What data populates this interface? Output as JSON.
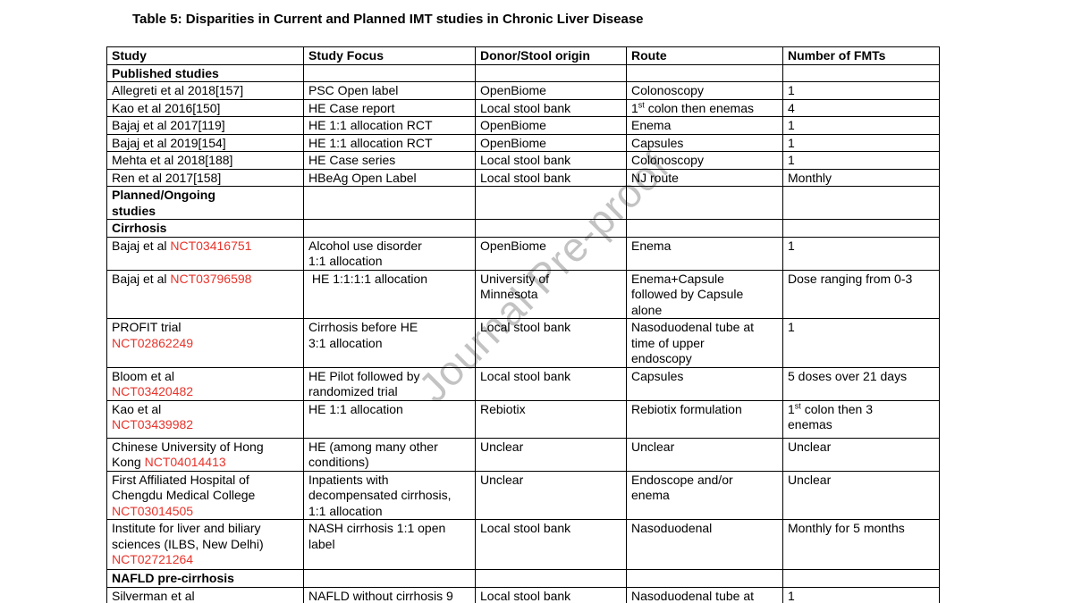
{
  "title": "Table 5: Disparities in Current and Planned IMT studies in Chronic Liver Disease",
  "watermark": {
    "text": "Journal Pre-proof"
  },
  "colors": {
    "accent_red": "#e8332a",
    "watermark_gray": "#c3c3c3",
    "border": "#000000",
    "background": "#ffffff"
  },
  "table": {
    "columns": [
      "Study",
      "Study Focus",
      "Donor/Stool origin",
      "Route",
      "Number of FMTs"
    ],
    "rows": [
      {
        "kind": "section",
        "h": 18,
        "cells": [
          [
            {
              "t": "Published studies"
            }
          ],
          [],
          [],
          [],
          []
        ]
      },
      {
        "kind": "data",
        "h": 18,
        "cells": [
          [
            {
              "t": "Allegreti et al 2018[157]"
            }
          ],
          [
            {
              "t": "PSC Open label"
            }
          ],
          [
            {
              "t": "OpenBiome"
            }
          ],
          [
            {
              "t": "Colonoscopy"
            }
          ],
          [
            {
              "t": "1"
            }
          ]
        ]
      },
      {
        "kind": "data",
        "h": 18,
        "cells": [
          [
            {
              "t": "Kao et al 2016[150]"
            }
          ],
          [
            {
              "t": "HE Case report"
            }
          ],
          [
            {
              "t": "Local stool bank"
            }
          ],
          [
            {
              "t": "1"
            },
            {
              "t": "st",
              "sup": true
            },
            {
              "t": " colon then enemas"
            }
          ],
          [
            {
              "t": "4"
            }
          ]
        ]
      },
      {
        "kind": "data",
        "h": 18,
        "cells": [
          [
            {
              "t": "Bajaj et al 2017[119]"
            }
          ],
          [
            {
              "t": "HE 1:1 allocation RCT"
            }
          ],
          [
            {
              "t": "OpenBiome"
            }
          ],
          [
            {
              "t": "Enema"
            }
          ],
          [
            {
              "t": "1"
            }
          ]
        ]
      },
      {
        "kind": "data",
        "h": 18,
        "cells": [
          [
            {
              "t": "Bajaj et al 2019[154]"
            }
          ],
          [
            {
              "t": "HE 1:1 allocation RCT"
            }
          ],
          [
            {
              "t": "OpenBiome"
            }
          ],
          [
            {
              "t": "Capsules"
            }
          ],
          [
            {
              "t": "1"
            }
          ]
        ]
      },
      {
        "kind": "data",
        "h": 18,
        "cells": [
          [
            {
              "t": "Mehta et al 2018[188]"
            }
          ],
          [
            {
              "t": "HE Case series"
            }
          ],
          [
            {
              "t": "Local stool bank"
            }
          ],
          [
            {
              "t": "Colonoscopy"
            }
          ],
          [
            {
              "t": "1"
            }
          ]
        ]
      },
      {
        "kind": "data",
        "h": 18,
        "cells": [
          [
            {
              "t": "Ren et al 2017[158]"
            }
          ],
          [
            {
              "t": "HBeAg Open Label"
            }
          ],
          [
            {
              "t": "Local stool bank"
            }
          ],
          [
            {
              "t": "NJ route"
            }
          ],
          [
            {
              "t": "Monthly"
            }
          ]
        ]
      },
      {
        "kind": "section",
        "h": 36,
        "cells": [
          [
            {
              "t": "Planned/Ongoing"
            },
            {
              "br": true
            },
            {
              "t": "studies"
            }
          ],
          [],
          [],
          [],
          []
        ]
      },
      {
        "kind": "section",
        "h": 18,
        "cells": [
          [
            {
              "t": "Cirrhosis"
            }
          ],
          [],
          [],
          [],
          []
        ]
      },
      {
        "kind": "data",
        "h": 37,
        "cells": [
          [
            {
              "t": "Bajaj et al "
            },
            {
              "t": "NCT03416751",
              "red": true
            }
          ],
          [
            {
              "t": "Alcohol use disorder"
            },
            {
              "br": true
            },
            {
              "t": "1:1 allocation"
            }
          ],
          [
            {
              "t": "OpenBiome"
            }
          ],
          [
            {
              "t": "Enema"
            }
          ],
          [
            {
              "t": "1"
            }
          ]
        ]
      },
      {
        "kind": "data",
        "h": 54,
        "cells": [
          [
            {
              "t": "Bajaj et al "
            },
            {
              "t": "NCT03796598",
              "red": true
            }
          ],
          [
            {
              "t": " HE 1:1:1:1 allocation"
            }
          ],
          [
            {
              "t": "University of"
            },
            {
              "br": true
            },
            {
              "t": "Minnesota"
            }
          ],
          [
            {
              "t": "Enema+Capsule"
            },
            {
              "br": true
            },
            {
              "t": "followed by Capsule"
            },
            {
              "br": true
            },
            {
              "t": "alone"
            }
          ],
          [
            {
              "t": "Dose ranging from 0-3"
            }
          ]
        ]
      },
      {
        "kind": "data",
        "h": 54,
        "cells": [
          [
            {
              "t": "PROFIT trial"
            },
            {
              "br": true
            },
            {
              "t": "NCT02862249",
              "red": true
            }
          ],
          [
            {
              "t": "Cirrhosis before HE"
            },
            {
              "br": true
            },
            {
              "t": "3:1 allocation"
            }
          ],
          [
            {
              "t": "Local stool bank"
            }
          ],
          [
            {
              "t": "Nasoduodenal tube at"
            },
            {
              "br": true
            },
            {
              "t": "time of upper"
            },
            {
              "br": true
            },
            {
              "t": "endoscopy"
            }
          ],
          [
            {
              "t": "1"
            }
          ]
        ]
      },
      {
        "kind": "data",
        "h": 36,
        "cells": [
          [
            {
              "t": "Bloom et al"
            },
            {
              "br": true
            },
            {
              "t": "NCT03420482",
              "red": true
            }
          ],
          [
            {
              "t": "HE Pilot followed by"
            },
            {
              "br": true
            },
            {
              "t": "randomized trial"
            }
          ],
          [
            {
              "t": "Local stool bank"
            }
          ],
          [
            {
              "t": "Capsules"
            }
          ],
          [
            {
              "t": "5 doses over 21 days"
            }
          ]
        ]
      },
      {
        "kind": "data",
        "h": 42,
        "cells": [
          [
            {
              "t": "Kao et al"
            },
            {
              "br": true
            },
            {
              "t": "NCT03439982",
              "red": true
            }
          ],
          [
            {
              "t": "HE 1:1 allocation"
            }
          ],
          [
            {
              "t": "Rebiotix"
            }
          ],
          [
            {
              "t": "Rebiotix formulation"
            }
          ],
          [
            {
              "t": "1"
            },
            {
              "t": "st",
              "sup": true
            },
            {
              "t": " colon then 3"
            },
            {
              "br": true
            },
            {
              "t": "enemas"
            }
          ]
        ]
      },
      {
        "kind": "data",
        "h": 36,
        "cells": [
          [
            {
              "t": "Chinese University of Hong"
            },
            {
              "br": true
            },
            {
              "t": "Kong "
            },
            {
              "t": "NCT04014413",
              "red": true
            }
          ],
          [
            {
              "t": "HE (among many other"
            },
            {
              "br": true
            },
            {
              "t": "conditions)"
            }
          ],
          [
            {
              "t": "Unclear"
            }
          ],
          [
            {
              "t": "Unclear"
            }
          ],
          [
            {
              "t": "Unclear"
            }
          ]
        ]
      },
      {
        "kind": "data",
        "h": 54,
        "cells": [
          [
            {
              "t": "First Affiliated Hospital of"
            },
            {
              "br": true
            },
            {
              "t": "Chengdu Medical College"
            },
            {
              "br": true
            },
            {
              "t": "NCT03014505",
              "red": true
            }
          ],
          [
            {
              "t": "Inpatients with"
            },
            {
              "br": true
            },
            {
              "t": "decompensated cirrhosis,"
            },
            {
              "br": true
            },
            {
              "t": "1:1 allocation"
            }
          ],
          [
            {
              "t": "Unclear"
            }
          ],
          [
            {
              "t": "Endoscope and/or"
            },
            {
              "br": true
            },
            {
              "t": "enema"
            }
          ],
          [
            {
              "t": "Unclear"
            }
          ]
        ]
      },
      {
        "kind": "data",
        "h": 56,
        "cells": [
          [
            {
              "t": "Institute for liver and biliary"
            },
            {
              "br": true
            },
            {
              "t": "sciences (ILBS, New Delhi)"
            },
            {
              "br": true
            },
            {
              "t": "NCT02721264",
              "red": true
            }
          ],
          [
            {
              "t": "NASH cirrhosis 1:1 open"
            },
            {
              "br": true
            },
            {
              "t": "label"
            }
          ],
          [
            {
              "t": "Local stool bank"
            }
          ],
          [
            {
              "t": "Nasoduodenal"
            }
          ],
          [
            {
              "t": "Monthly for 5 months"
            }
          ]
        ]
      },
      {
        "kind": "section",
        "h": 18,
        "cells": [
          [
            {
              "t": "NAFLD pre-cirrhosis"
            }
          ],
          [],
          [],
          [],
          []
        ]
      },
      {
        "kind": "data",
        "h": 19,
        "cells": [
          [
            {
              "t": "Silverman et al"
            }
          ],
          [
            {
              "t": "NAFLD without cirrhosis 9"
            }
          ],
          [
            {
              "t": "Local stool bank"
            }
          ],
          [
            {
              "t": "Nasoduodenal tube at"
            }
          ],
          [
            {
              "t": "1"
            }
          ]
        ]
      }
    ]
  }
}
